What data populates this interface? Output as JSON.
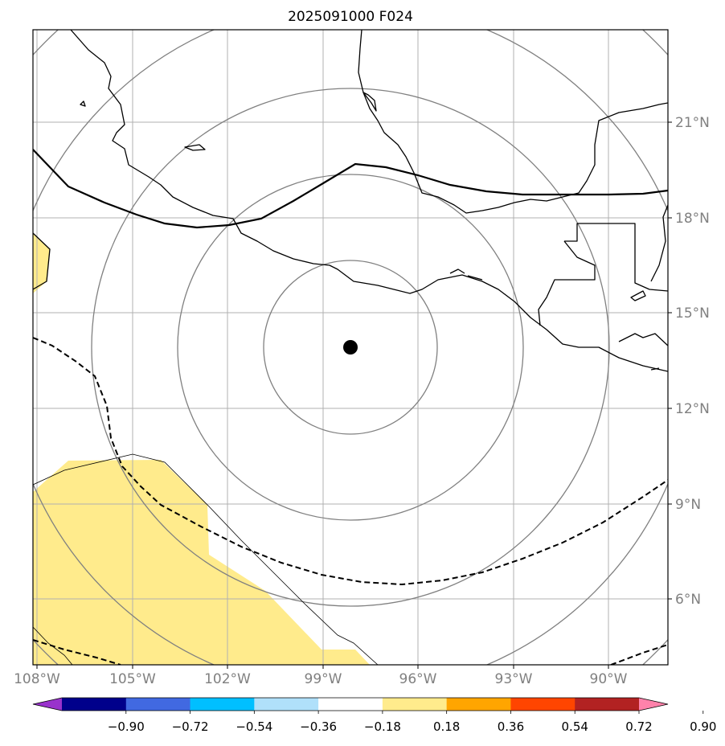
{
  "title": "2025091000 F024",
  "map": {
    "lon_labels": [
      "108°W",
      "105°W",
      "102°W",
      "99°W",
      "96°W",
      "93°W",
      "90°W"
    ],
    "lat_labels": [
      "21°N",
      "18°N",
      "15°N",
      "12°N",
      "9°N",
      "6°N"
    ],
    "center_marker": "storm-center-point"
  },
  "colorbar": {
    "tick_labels": [
      "−0.90",
      "−0.72",
      "−0.54",
      "−0.36",
      "−0.18",
      "0.18",
      "0.36",
      "0.54",
      "0.72",
      "0.90"
    ],
    "colors": [
      "#9932cc",
      "#00008b",
      "#4169e1",
      "#00bfff",
      "#b0e0fa",
      "#ffffff",
      "#ffeb8c",
      "#ffa500",
      "#ff4500",
      "#b22222",
      "#ff82ab"
    ]
  },
  "colors": {
    "grid": "#b0b0b0",
    "range_ring": "#808080",
    "coast": "#000000",
    "fill": "#ffeb8c",
    "tick_label": "#808080"
  }
}
